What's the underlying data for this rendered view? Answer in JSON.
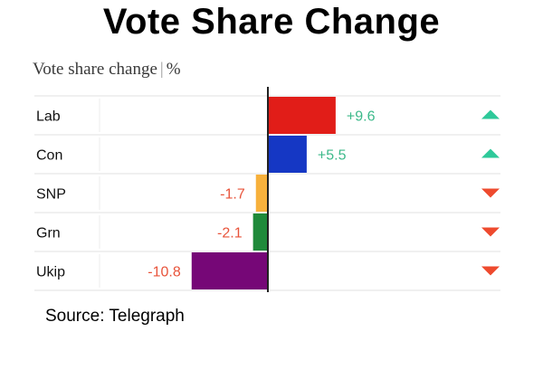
{
  "header": {
    "title": "Vote Share Change",
    "chart_title_main": "Vote share change",
    "chart_title_sep": "|",
    "chart_title_unit": "%"
  },
  "source": "Source: Telegraph",
  "colors": {
    "positive_text": "#3cb98a",
    "negative_text": "#e8533a",
    "up_arrow": "#2ec99a",
    "down_arrow": "#ee4a2e",
    "axis": "#222222",
    "row_border": "#e2e2e2"
  },
  "chart_data": {
    "type": "bar",
    "orientation": "horizontal",
    "title": "Vote share change | %",
    "unit": "%",
    "categories": [
      "Lab",
      "Con",
      "SNP",
      "Grn",
      "Ukip"
    ],
    "values": [
      9.6,
      5.5,
      -1.7,
      -2.1,
      -10.8
    ],
    "labels": [
      "+9.6",
      "+5.5",
      "-1.7",
      "-2.1",
      "-10.8"
    ],
    "bar_colors": [
      "#e11d18",
      "#1537c4",
      "#f7b13c",
      "#1f8a3a",
      "#760777"
    ],
    "trend_icons": [
      "up-arrow-icon",
      "up-arrow-icon",
      "down-arrow-icon",
      "down-arrow-icon",
      "down-arrow-icon"
    ],
    "xlim": [
      -10.8,
      9.6
    ],
    "grid": false,
    "legend": "none"
  }
}
